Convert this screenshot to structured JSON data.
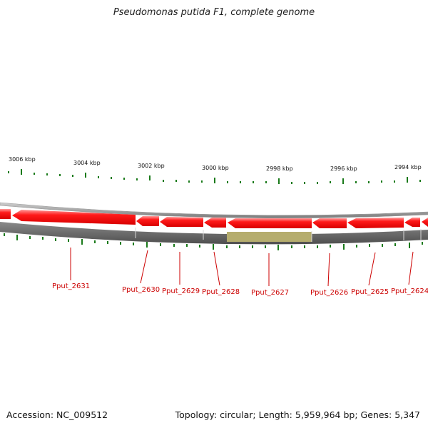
{
  "title": "Pseudomonas putida F1, complete genome",
  "footer": {
    "accession": "Accession: NC_009512",
    "topology": "Topology: circular; Length: 5,959,964 bp; Genes: 5,347"
  },
  "scale": {
    "tick_labels": [
      "3006 kbp",
      "3004 kbp",
      "3002 kbp",
      "3000 kbp",
      "2998 kbp",
      "2996 kbp",
      "2994 kbp"
    ]
  },
  "genes": [
    "Pput_2631",
    "Pput_2630",
    "Pput_2629",
    "Pput_2628",
    "Pput_2627",
    "Pput_2626",
    "Pput_2625",
    "Pput_2624"
  ],
  "highlighted_gene": "Pput_2627",
  "colors": {
    "gene": "#ff0000",
    "tick": "#1a7a1a",
    "label": "#cc0000",
    "track": "#5a5a5a",
    "highlight": "#b5ad6e"
  }
}
